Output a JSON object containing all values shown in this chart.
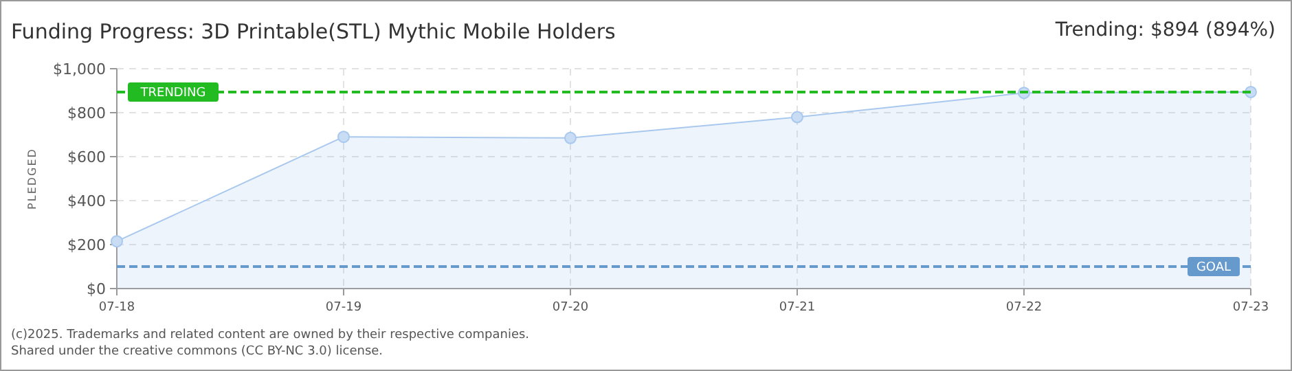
{
  "chart_data": {
    "type": "area",
    "title": "Funding Progress: 3D Printable(STL) Mythic Mobile Holders",
    "subtitle": "Trending:  $894 (894%)",
    "ylabel": "PLEDGED",
    "categories": [
      "07-18",
      "07-19",
      "07-20",
      "07-21",
      "07-22",
      "07-23"
    ],
    "series": [
      {
        "color": "#a8c8ee",
        "values": [
          215,
          690,
          685,
          780,
          890,
          894
        ]
      }
    ],
    "ylim": [
      0,
      1000
    ],
    "yticks": [
      {
        "value": 0,
        "label": "$0"
      },
      {
        "value": 200,
        "label": "$200"
      },
      {
        "value": 400,
        "label": "$400"
      },
      {
        "value": 600,
        "label": "$600"
      },
      {
        "value": 800,
        "label": "$800"
      },
      {
        "value": 1000,
        "label": "$1,000"
      }
    ],
    "ref_lines": [
      {
        "axis": "y",
        "value": 894,
        "label": "TRENDING",
        "color": "#22bb22",
        "line_style": "dashed"
      },
      {
        "axis": "y",
        "value": 100,
        "label": "GOAL",
        "color": "#6699cc",
        "line_style": "dashed"
      }
    ],
    "grid": true,
    "marker": "circle",
    "annotations": [
      "(c)2025. Trademarks and related content are owned by their respective companies.",
      "Shared under the creative commons (CC BY-NC 3.0) license."
    ]
  }
}
